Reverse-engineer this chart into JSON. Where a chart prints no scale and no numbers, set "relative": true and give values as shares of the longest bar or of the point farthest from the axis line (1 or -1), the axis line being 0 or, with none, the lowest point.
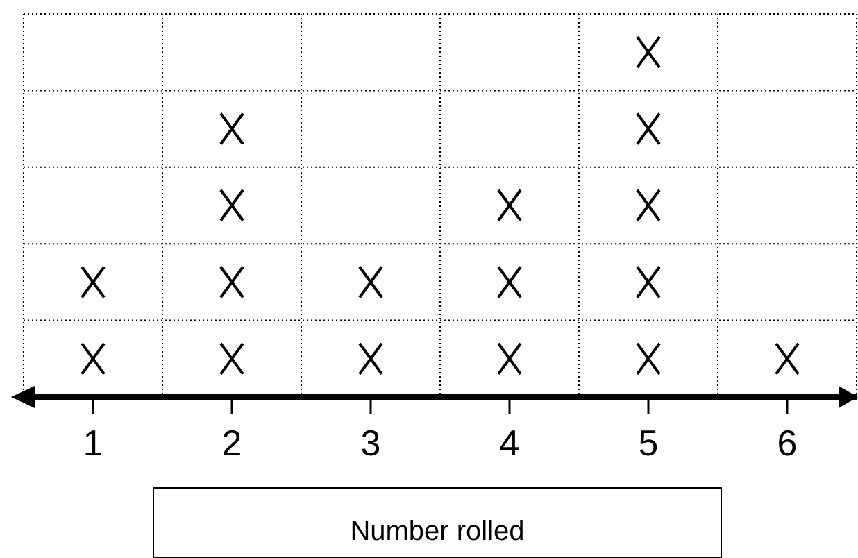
{
  "chart_data": {
    "type": "scatter",
    "xlabel": "Number rolled",
    "categories": [
      "1",
      "2",
      "3",
      "4",
      "5",
      "6"
    ],
    "grid": true,
    "marker": "cross",
    "tick_labels": "x",
    "relative": true,
    "series": [
      {
        "color": "#000000",
        "x": [
          "1",
          "1",
          "2",
          "2",
          "2",
          "2",
          "3",
          "3",
          "4",
          "4",
          "4",
          "5",
          "5",
          "5",
          "5",
          "5",
          "6"
        ],
        "values": [
          0.111,
          0.333,
          0.111,
          0.333,
          0.556,
          0.778,
          0.111,
          0.333,
          0.111,
          0.333,
          0.556,
          0.111,
          0.333,
          0.556,
          0.778,
          1,
          0.111
        ]
      }
    ]
  }
}
